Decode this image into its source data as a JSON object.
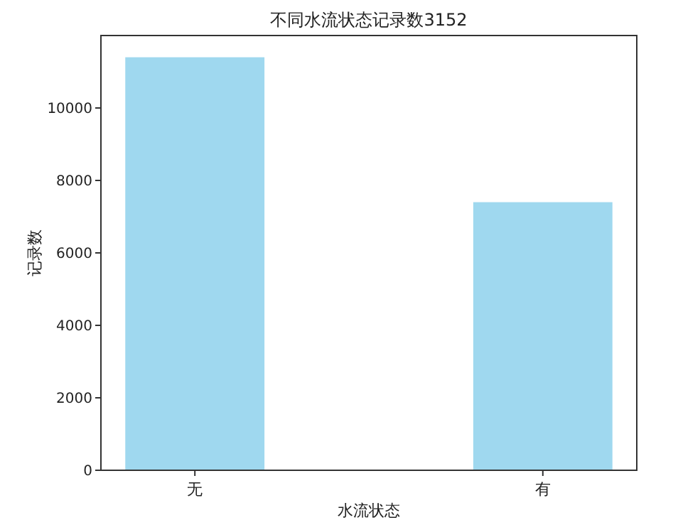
{
  "chart_data": {
    "type": "bar",
    "title": "不同水流状态记录数3152",
    "xlabel": "水流状态",
    "ylabel": "记录数",
    "categories": [
      "无",
      "有"
    ],
    "values": [
      11400,
      7400
    ],
    "color": "#9fd8ef",
    "ylim": [
      0,
      12000
    ],
    "yticks": [
      0,
      2000,
      4000,
      6000,
      8000,
      10000
    ]
  }
}
